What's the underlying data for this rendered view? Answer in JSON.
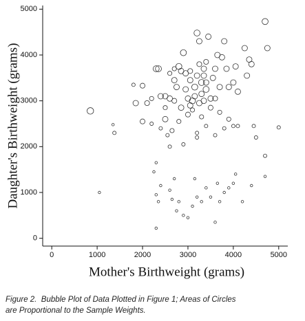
{
  "chart_data": {
    "type": "bubble",
    "xlabel": "Mother's Birthweight (grams)",
    "ylabel": "Daughter's Birthweight (grams)",
    "xlim": [
      -200,
      5200
    ],
    "ylim": [
      -170,
      5080
    ],
    "xticks": [
      0,
      1000,
      2000,
      3000,
      4000,
      5000
    ],
    "yticks": [
      0,
      1000,
      2000,
      3000,
      4000,
      5000
    ],
    "color": "#333333",
    "x": [
      850,
      1350,
      1380,
      1050,
      1800,
      1850,
      2000,
      2000,
      2100,
      2300,
      2350,
      2400,
      2500,
      2500,
      2600,
      2700,
      2750,
      2800,
      2850,
      2900,
      2850,
      2950,
      3000,
      3050,
      3100,
      3150,
      3200,
      3200,
      3250,
      3300,
      3350,
      3400,
      3450,
      3500,
      3550,
      3600,
      3650,
      3700,
      3750,
      3800,
      3850,
      3900,
      4000,
      4050,
      4100,
      4250,
      4350,
      4400,
      4700,
      4750,
      4300,
      3000,
      2800,
      2650,
      2600,
      2550,
      2900,
      3200,
      3200,
      3400,
      3600,
      3800,
      4000,
      4100,
      4450,
      4500,
      4700,
      5000,
      2400,
      2200,
      2300,
      2250,
      2300,
      2350,
      2400,
      2600,
      2650,
      2700,
      2750,
      2800,
      2900,
      3000,
      3100,
      3150,
      3200,
      3300,
      3400,
      3500,
      3600,
      3650,
      3700,
      3800,
      3900,
      4000,
      4050,
      4200,
      4400,
      4700,
      2300,
      3300,
      3250,
      3350,
      3150,
      3050,
      2950,
      3400,
      3500,
      3600,
      2700,
      2500,
      3100,
      3350,
      3400,
      3250,
      3050,
      3300,
      3700,
      3900,
      2600,
      2700,
      2200
    ],
    "y": [
      2780,
      2480,
      2300,
      1000,
      3350,
      2950,
      3330,
      2550,
      2950,
      3700,
      3700,
      3100,
      3100,
      2600,
      3050,
      3450,
      3300,
      3750,
      3650,
      4050,
      2850,
      3250,
      3050,
      2900,
      3000,
      3300,
      3550,
      4480,
      4300,
      3400,
      3700,
      3250,
      4400,
      3050,
      3500,
      3700,
      4000,
      3300,
      3950,
      4300,
      3700,
      3300,
      3400,
      3750,
      3200,
      4150,
      3900,
      3800,
      4730,
      4150,
      3550,
      2700,
      2550,
      2350,
      2000,
      2250,
      2050,
      2300,
      2200,
      2450,
      2250,
      2400,
      2450,
      2450,
      2450,
      2200,
      1800,
      2420,
      2400,
      2500,
      1650,
      1450,
      950,
      800,
      1150,
      1050,
      850,
      1300,
      600,
      800,
      500,
      450,
      700,
      1300,
      900,
      800,
      1100,
      900,
      350,
      1200,
      800,
      1000,
      1100,
      1200,
      1400,
      800,
      1150,
      1350,
      220,
      3150,
      2950,
      3550,
      3100,
      3450,
      3600,
      3850,
      2850,
      3050,
      3000,
      2850,
      2800,
      3000,
      3400,
      3800,
      3650,
      2650,
      2750,
      2600,
      3600,
      3700,
      3050
    ],
    "sizes": [
      7,
      1,
      2,
      1,
      2,
      5,
      4,
      4,
      4,
      6,
      6,
      5,
      5,
      5,
      5,
      5,
      5,
      6,
      5,
      6,
      5,
      5,
      5,
      5,
      6,
      6,
      5,
      6,
      5,
      6,
      5,
      6,
      5,
      5,
      5,
      5,
      5,
      5,
      5,
      5,
      5,
      5,
      5,
      5,
      5,
      5,
      5,
      5,
      6,
      5,
      5,
      4,
      3,
      3,
      2,
      2,
      2,
      2,
      2,
      2,
      2,
      2,
      2,
      2,
      2,
      2,
      2,
      2,
      2,
      2,
      1,
      1,
      1,
      1,
      1,
      1,
      1,
      1,
      1,
      1,
      1,
      1,
      1,
      1,
      1,
      1,
      1,
      1,
      1,
      1,
      1,
      1,
      1,
      1,
      1,
      1,
      1,
      1,
      1,
      5,
      5,
      5,
      5,
      5,
      5,
      4,
      4,
      4,
      4,
      3,
      3,
      5,
      5,
      4,
      4,
      3,
      3,
      3,
      3,
      3,
      3
    ]
  },
  "caption": [
    "Figure 2.  Bubble Plot of Data Plotted in Figure 1; Areas of Circles",
    "are Proportional to the Sample Weights."
  ]
}
